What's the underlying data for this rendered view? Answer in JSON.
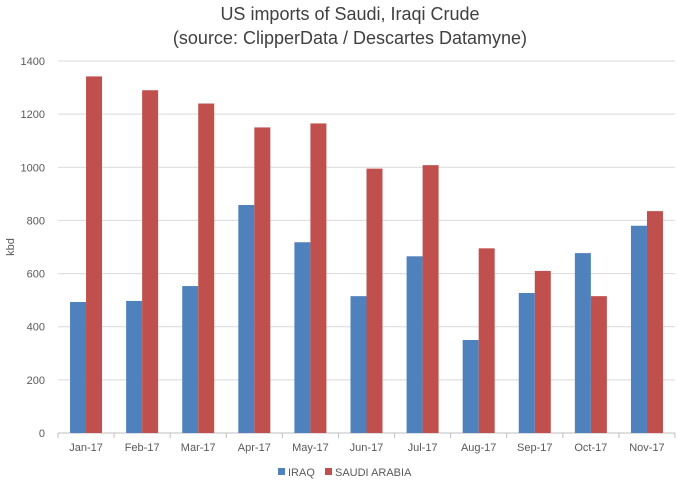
{
  "chart_data": {
    "type": "bar",
    "title": "US imports of Saudi, Iraqi Crude",
    "subtitle": "(source: ClipperData / Descartes Datamyne)",
    "xlabel": "",
    "ylabel": "kbd",
    "ylim": [
      0,
      1400
    ],
    "yticks": [
      0,
      200,
      400,
      600,
      800,
      1000,
      1200,
      1400
    ],
    "grid": true,
    "legend_position": "bottom",
    "categories": [
      "Jan-17",
      "Feb-17",
      "Mar-17",
      "Apr-17",
      "May-17",
      "Jun-17",
      "Jul-17",
      "Aug-17",
      "Sep-17",
      "Oct-17",
      "Nov-17"
    ],
    "series": [
      {
        "name": "IRAQ",
        "color": "#4f81bd",
        "values": [
          493,
          497,
          553,
          858,
          718,
          515,
          665,
          350,
          527,
          677,
          780
        ]
      },
      {
        "name": "SAUDI ARABIA",
        "color": "#c0504d",
        "values": [
          1342,
          1290,
          1240,
          1150,
          1165,
          995,
          1008,
          695,
          610,
          515,
          835
        ]
      }
    ]
  }
}
